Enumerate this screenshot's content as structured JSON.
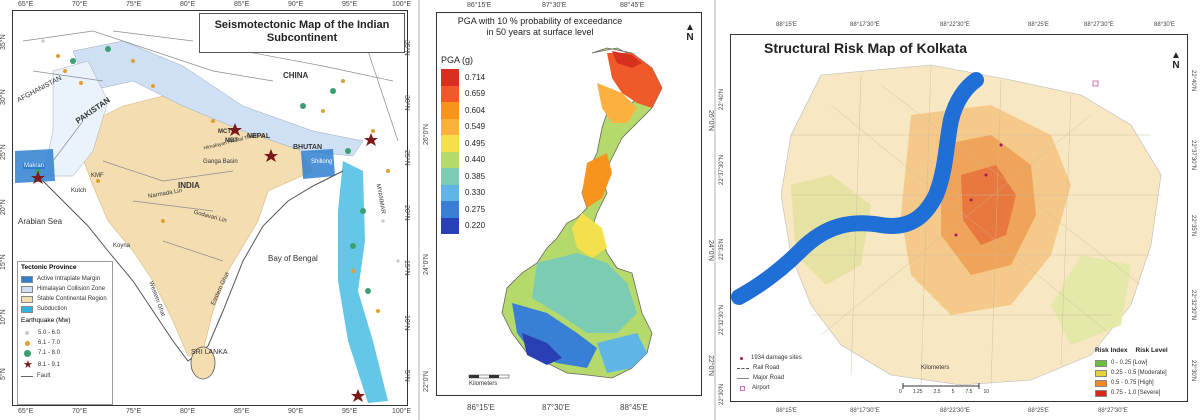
{
  "panel1": {
    "title": "Seismotectonic Map of the Indian Subcontinent",
    "top_ticks": [
      "65°E",
      "70°E",
      "75°E",
      "80°E",
      "85°E",
      "90°E",
      "95°E",
      "100°E"
    ],
    "bottom_ticks": [
      "65°E",
      "70°E",
      "75°E",
      "80°E",
      "85°E",
      "90°E",
      "95°E",
      "100°E"
    ],
    "left_ticks": [
      "35°N",
      "30°N",
      "25°N",
      "20°N",
      "15°N",
      "10°N",
      "5°N"
    ],
    "right_ticks": [
      "35°N",
      "30°N",
      "25°N",
      "20°N",
      "15°N",
      "10°N",
      "5°N"
    ],
    "place_labels": [
      "AFGHANISTAN",
      "PAKISTAN",
      "CHINA",
      "NEPAL",
      "BHUTAN",
      "INDIA",
      "MYANMAR",
      "Arabian Sea",
      "Bay of Bengal",
      "SRI LANKA",
      "Ganga Basin",
      "Makran",
      "MCT",
      "MBT",
      "Shillong",
      "KMF",
      "Kutch",
      "Koyna",
      "Himalayan Frontal Thrust",
      "Narmada Lin",
      "Godavari Lin",
      "Western Ghat",
      "Eastern Ghat"
    ],
    "legend": {
      "tectonic_title": "Tectonic Province",
      "tectonic_items": [
        {
          "label": "Active Intraplate Margin",
          "color": "#2f7fd0"
        },
        {
          "label": "Himalayan Collision Zone",
          "color": "#cfe0f5"
        },
        {
          "label": "Stable Continental Region",
          "color": "#f4ddb0"
        },
        {
          "label": "Subduction",
          "color": "#32b4e0"
        }
      ],
      "eq_title": "Earthquake (Mw)",
      "eq_items": [
        {
          "label": "5.0 - 6.0",
          "color": "#c8c8c8"
        },
        {
          "label": "6.1 - 7.0",
          "color": "#e0a030"
        },
        {
          "label": "7.1 - 8.0",
          "color": "#3aa070"
        },
        {
          "label": "8.1 - 9.1",
          "color": "#7a1a1a"
        }
      ],
      "fault_label": "Fault"
    }
  },
  "panel2": {
    "title_line1": "PGA with 10 % probability of exceedance",
    "title_line2": "in 50 years at surface level",
    "top_ticks": [
      "86°15'E",
      "87°30'E",
      "88°45'E"
    ],
    "bottom_ticks": [
      "86°15'E",
      "87°30'E",
      "88°45'E"
    ],
    "left_ticks": [
      "26°0'N",
      "24°0'N",
      "22°0'N"
    ],
    "right_ticks": [
      "26°0'N",
      "24°0'N",
      "22°0'N"
    ],
    "legend_title": "PGA (g)",
    "pga_levels": [
      {
        "value": "0.714",
        "color": "#d7301f"
      },
      {
        "value": "0.659",
        "color": "#f05a28"
      },
      {
        "value": "0.604",
        "color": "#f7941d"
      },
      {
        "value": "0.549",
        "color": "#fbb040"
      },
      {
        "value": "0.495",
        "color": "#f4e04d"
      },
      {
        "value": "0.440",
        "color": "#b5d96a"
      },
      {
        "value": "0.385",
        "color": "#7ccbb5"
      },
      {
        "value": "0.330",
        "color": "#5fb6e6"
      },
      {
        "value": "0.275",
        "color": "#3a7fd6"
      },
      {
        "value": "0.220",
        "color": "#2b3fb5"
      }
    ],
    "scale_label": "Kilometers",
    "north": "N"
  },
  "panel3": {
    "title": "Structural Risk Map of Kolkata",
    "top_ticks": [
      "88°15'E",
      "88°17'30\"E",
      "88°22'30\"E",
      "88°25'E",
      "88°27'30\"E",
      "88°30'E"
    ],
    "bottom_ticks": [
      "88°15'E",
      "88°17'30\"E",
      "88°22'30\"E",
      "88°25'E",
      "88°27'30\"E"
    ],
    "left_ticks": [
      "22°40'N",
      "22°37'30\"N",
      "22°35'N",
      "22°32'30\"N",
      "22°30'N"
    ],
    "right_ticks": [
      "22°40'N",
      "22°37'30\"N",
      "22°35'N",
      "22°32'30\"N",
      "22°30'N"
    ],
    "legend_left": [
      {
        "label": "1934 damage sites",
        "symbol": "dot"
      },
      {
        "label": "Rail Road",
        "symbol": "line"
      },
      {
        "label": "Major Road",
        "symbol": "line"
      },
      {
        "label": "Airport",
        "symbol": "square"
      }
    ],
    "legend_right_header": [
      "Risk Index",
      "Risk Level"
    ],
    "risk_levels": [
      {
        "label": "0 - 0.25 [Low]",
        "color": "#6cbf3c"
      },
      {
        "label": "0.25 - 0.5 [Moderate]",
        "color": "#e8d23a"
      },
      {
        "label": "0.5 - 0.75 [High]",
        "color": "#f08a24"
      },
      {
        "label": "0.75 - 1.0 [Severe]",
        "color": "#d9261c"
      }
    ],
    "scale_label": "Kilometers",
    "scale_values": [
      "0",
      "1.25",
      "2.5",
      "5",
      "7.5",
      "10"
    ],
    "north": "N"
  }
}
